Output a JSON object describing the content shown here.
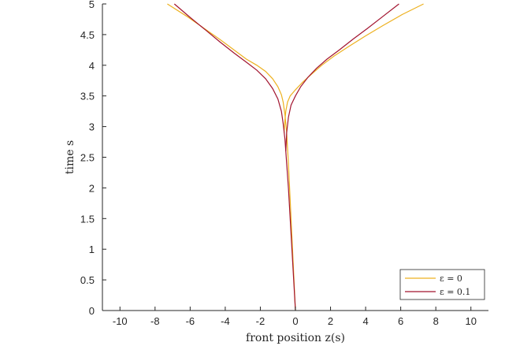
{
  "chart_data": {
    "type": "line",
    "xlabel": "front position z(s)",
    "ylabel": "time s",
    "xlim": [
      -11,
      11
    ],
    "ylim": [
      0,
      5
    ],
    "xticks": [
      -10,
      -8,
      -6,
      -4,
      -2,
      0,
      2,
      4,
      6,
      8,
      10
    ],
    "xtick_labels": [
      "-10",
      "-8",
      "-6",
      "-4",
      "-2",
      "0",
      "2",
      "4",
      "6",
      "8",
      "10"
    ],
    "yticks": [
      0,
      0.5,
      1,
      1.5,
      2,
      2.5,
      3,
      3.5,
      4,
      4.5,
      5
    ],
    "ytick_labels": [
      "0",
      "0.5",
      "1",
      "1.5",
      "2",
      "2.5",
      "3",
      "3.5",
      "4",
      "4.5",
      "5"
    ],
    "grid": false,
    "legend_position": "bottom-right",
    "series": [
      {
        "name": "ε = 0",
        "color": "#EDB120",
        "branches": [
          {
            "x": [
              0,
              -0.1,
              -0.2,
              -0.3,
              -0.4,
              -0.5,
              -0.6,
              -0.65,
              -0.7,
              -0.8,
              -1.0,
              -1.3,
              -1.7,
              -2.2,
              -2.8,
              -3.5,
              -4.3,
              -5.2,
              -6.2,
              -7.3
            ],
            "y": [
              0,
              0.6,
              1.2,
              1.8,
              2.4,
              2.9,
              3.2,
              3.3,
              3.4,
              3.52,
              3.65,
              3.78,
              3.9,
              4.0,
              4.1,
              4.25,
              4.42,
              4.6,
              4.8,
              5.0
            ]
          },
          {
            "x": [
              -0.65,
              -0.6,
              -0.55,
              -0.45,
              -0.3,
              0,
              0.4,
              0.9,
              1.5,
              2.2,
              3.0,
              4.0,
              5.0,
              6.1,
              7.3
            ],
            "y": [
              2.9,
              3.1,
              3.25,
              3.4,
              3.5,
              3.6,
              3.72,
              3.85,
              4.0,
              4.15,
              4.3,
              4.48,
              4.65,
              4.83,
              5.0
            ]
          }
        ]
      },
      {
        "name": "ε = 0.1",
        "color": "#A2142F",
        "branches": [
          {
            "x": [
              0,
              -0.1,
              -0.2,
              -0.3,
              -0.4,
              -0.5,
              -0.6,
              -0.7,
              -0.8,
              -1.0,
              -1.3,
              -1.7,
              -2.2,
              -2.8,
              -3.5,
              -4.3,
              -5.1,
              -6.0,
              -6.9
            ],
            "y": [
              0,
              0.5,
              1.0,
              1.5,
              2.0,
              2.4,
              2.8,
              3.05,
              3.25,
              3.45,
              3.62,
              3.78,
              3.92,
              4.05,
              4.2,
              4.38,
              4.57,
              4.78,
              5.0
            ]
          },
          {
            "x": [
              -0.55,
              -0.5,
              -0.4,
              -0.25,
              0,
              0.3,
              0.7,
              1.2,
              1.8,
              2.5,
              3.3,
              4.1,
              5.0,
              5.9
            ],
            "y": [
              2.6,
              2.9,
              3.15,
              3.35,
              3.5,
              3.65,
              3.8,
              3.95,
              4.1,
              4.25,
              4.43,
              4.6,
              4.8,
              5.0
            ]
          }
        ]
      }
    ]
  }
}
